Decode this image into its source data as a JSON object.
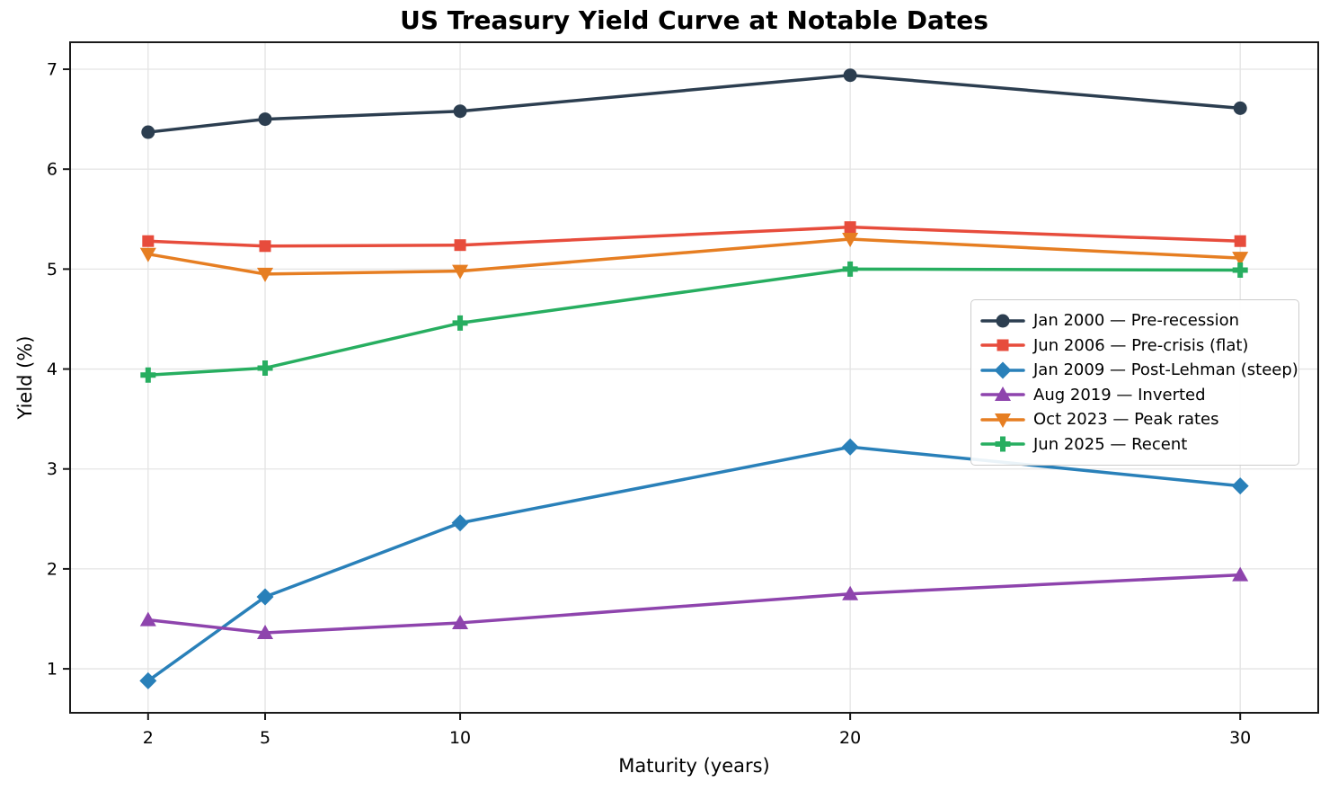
{
  "chart_data": {
    "type": "line",
    "title": "US Treasury Yield Curve at Notable Dates",
    "xlabel": "Maturity (years)",
    "ylabel": "Yield (%)",
    "x": [
      2,
      5,
      10,
      20,
      30
    ],
    "x_tick_labels": [
      "2",
      "5",
      "10",
      "20",
      "30"
    ],
    "y_ticks": [
      1,
      2,
      3,
      4,
      5,
      6,
      7
    ],
    "xlim": [
      0,
      32
    ],
    "ylim": [
      0.56,
      7.27
    ],
    "grid": true,
    "legend_position": "center right",
    "series": [
      {
        "name": "Jan 2000 — Pre-recession",
        "marker": "circle",
        "color": "#2c3e50",
        "values": [
          6.37,
          6.5,
          6.58,
          6.94,
          6.61
        ]
      },
      {
        "name": "Jun 2006 — Pre-crisis (flat)",
        "marker": "square",
        "color": "#e74c3c",
        "values": [
          5.28,
          5.23,
          5.24,
          5.42,
          5.28
        ]
      },
      {
        "name": "Jan 2009 — Post-Lehman (steep)",
        "marker": "diamond",
        "color": "#2980b9",
        "values": [
          0.88,
          1.72,
          2.46,
          3.22,
          2.83
        ]
      },
      {
        "name": "Aug 2019 — Inverted",
        "marker": "triangle-up",
        "color": "#8e44ad",
        "values": [
          1.49,
          1.36,
          1.46,
          1.75,
          1.94
        ]
      },
      {
        "name": "Oct 2023 — Peak rates",
        "marker": "triangle-down",
        "color": "#e67e22",
        "values": [
          5.15,
          4.95,
          4.98,
          5.3,
          5.11
        ]
      },
      {
        "name": "Jun 2025 — Recent",
        "marker": "plus",
        "color": "#27ae60",
        "values": [
          3.94,
          4.01,
          4.46,
          5.0,
          4.99
        ]
      }
    ],
    "style": {
      "grid_color": "#e4e4e4",
      "spine_color": "#1a1a1a",
      "tick_color": "#1a1a1a",
      "text_color": "#000000",
      "legend_border": "#cccccc",
      "background": "#ffffff"
    }
  }
}
